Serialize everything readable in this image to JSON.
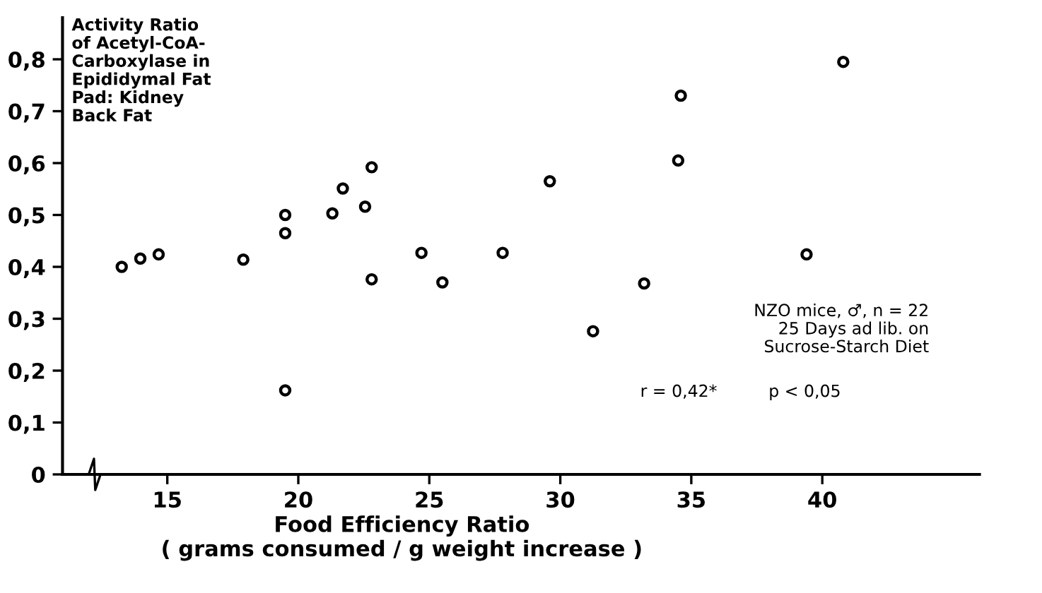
{
  "chart_data": {
    "type": "scatter",
    "ylabel": "Activity Ratio\nof Acetyl-CoA-\nCarboxylase in\nEpididymal Fat\nPad: Kidney\nBack Fat",
    "xlabel": "Food Efficiency Ratio\n( grams consumed / g weight increase )",
    "x": [
      13.26,
      13.97,
      14.67,
      17.9,
      19.5,
      19.5,
      19.5,
      21.3,
      21.7,
      22.55,
      22.8,
      22.8,
      24.7,
      25.5,
      27.8,
      29.6,
      31.25,
      33.2,
      34.5,
      34.6,
      39.4,
      40.8
    ],
    "series": [
      {
        "color": "#000000",
        "values": [
          0.4,
          0.416,
          0.424,
          0.414,
          0.5,
          0.465,
          0.162,
          0.503,
          0.551,
          0.516,
          0.592,
          0.376,
          0.427,
          0.37,
          0.427,
          0.565,
          0.276,
          0.368,
          0.605,
          0.73,
          0.424,
          0.795
        ]
      }
    ],
    "xlim": [
      11,
      46
    ],
    "ylim": [
      0,
      0.88
    ],
    "xticks": [
      15,
      20,
      25,
      30,
      35,
      40
    ],
    "yticks": [
      0,
      {
        "value": 0.1,
        "label": "0,1"
      },
      {
        "value": 0.2,
        "label": "0,2"
      },
      {
        "value": 0.3,
        "label": "0,3"
      },
      {
        "value": 0.4,
        "label": "0,4"
      },
      {
        "value": 0.5,
        "label": "0,5"
      },
      {
        "value": 0.6,
        "label": "0,6"
      },
      {
        "value": 0.7,
        "label": "0,7"
      },
      {
        "value": 0.8,
        "label": "0,8"
      }
    ],
    "annotations": [
      "NZO mice, ♂, n = 22\n25 Days ad lib. on\nSucrose-Starch Diet",
      "r = 0,42*",
      "p < 0,05"
    ],
    "marker": "circle",
    "grid": false,
    "legend": false
  }
}
